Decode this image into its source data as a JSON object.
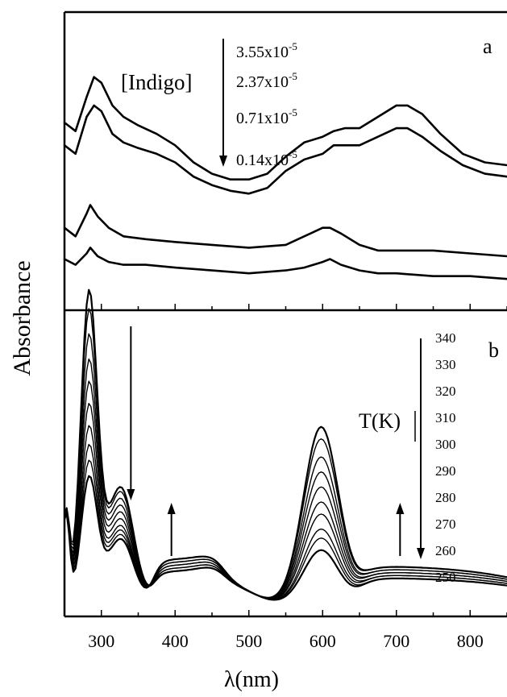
{
  "figure": {
    "ylabel": "Absorbance",
    "xlabel": "λ(nm)",
    "x_ticks": [
      "300",
      "400",
      "500",
      "600",
      "700",
      "800"
    ]
  },
  "chart_data": [
    {
      "type": "line",
      "panel": "a",
      "legend_title": "[Indigo]",
      "xlabel": "λ(nm)",
      "ylabel": "Absorbance",
      "xlim": [
        250,
        850
      ],
      "x_ticks": [
        300,
        400,
        500,
        600,
        700,
        800
      ],
      "series": [
        {
          "name": "3.55x10^-5",
          "label_base": "3.55x10",
          "label_exp": "-5",
          "points": [
            [
              250,
              0.64
            ],
            [
              265,
              0.61
            ],
            [
              280,
              0.73
            ],
            [
              290,
              0.8
            ],
            [
              300,
              0.78
            ],
            [
              315,
              0.7
            ],
            [
              330,
              0.66
            ],
            [
              350,
              0.63
            ],
            [
              375,
              0.6
            ],
            [
              400,
              0.56
            ],
            [
              425,
              0.5
            ],
            [
              450,
              0.46
            ],
            [
              475,
              0.44
            ],
            [
              500,
              0.44
            ],
            [
              525,
              0.46
            ],
            [
              550,
              0.52
            ],
            [
              575,
              0.57
            ],
            [
              600,
              0.59
            ],
            [
              615,
              0.61
            ],
            [
              630,
              0.62
            ],
            [
              650,
              0.62
            ],
            [
              675,
              0.66
            ],
            [
              700,
              0.7
            ],
            [
              715,
              0.7
            ],
            [
              735,
              0.67
            ],
            [
              760,
              0.6
            ],
            [
              790,
              0.53
            ],
            [
              820,
              0.5
            ],
            [
              850,
              0.49
            ]
          ]
        },
        {
          "name": "2.37x10^-5",
          "label_base": "2.37x10",
          "label_exp": "-5",
          "points": [
            [
              250,
              0.56
            ],
            [
              265,
              0.53
            ],
            [
              280,
              0.66
            ],
            [
              290,
              0.7
            ],
            [
              300,
              0.68
            ],
            [
              315,
              0.6
            ],
            [
              330,
              0.57
            ],
            [
              350,
              0.55
            ],
            [
              375,
              0.53
            ],
            [
              400,
              0.5
            ],
            [
              425,
              0.45
            ],
            [
              450,
              0.42
            ],
            [
              475,
              0.4
            ],
            [
              500,
              0.39
            ],
            [
              525,
              0.41
            ],
            [
              550,
              0.47
            ],
            [
              575,
              0.51
            ],
            [
              600,
              0.53
            ],
            [
              615,
              0.56
            ],
            [
              630,
              0.56
            ],
            [
              650,
              0.56
            ],
            [
              675,
              0.59
            ],
            [
              700,
              0.62
            ],
            [
              715,
              0.62
            ],
            [
              735,
              0.59
            ],
            [
              760,
              0.54
            ],
            [
              790,
              0.49
            ],
            [
              820,
              0.46
            ],
            [
              850,
              0.45
            ]
          ]
        },
        {
          "name": "0.71x10^-5",
          "label_base": "0.71x10",
          "label_exp": "-5",
          "points": [
            [
              250,
              0.27
            ],
            [
              265,
              0.24
            ],
            [
              280,
              0.32
            ],
            [
              285,
              0.35
            ],
            [
              295,
              0.31
            ],
            [
              310,
              0.27
            ],
            [
              330,
              0.24
            ],
            [
              360,
              0.23
            ],
            [
              400,
              0.22
            ],
            [
              450,
              0.21
            ],
            [
              500,
              0.2
            ],
            [
              550,
              0.21
            ],
            [
              575,
              0.24
            ],
            [
              600,
              0.27
            ],
            [
              610,
              0.27
            ],
            [
              625,
              0.25
            ],
            [
              650,
              0.21
            ],
            [
              675,
              0.19
            ],
            [
              700,
              0.19
            ],
            [
              725,
              0.19
            ],
            [
              750,
              0.19
            ],
            [
              800,
              0.18
            ],
            [
              850,
              0.17
            ]
          ]
        },
        {
          "name": "0.14x10^-5",
          "label_base": "0.14x10",
          "label_exp": "-5",
          "points": [
            [
              250,
              0.16
            ],
            [
              265,
              0.14
            ],
            [
              280,
              0.18
            ],
            [
              285,
              0.2
            ],
            [
              295,
              0.17
            ],
            [
              310,
              0.15
            ],
            [
              330,
              0.14
            ],
            [
              360,
              0.14
            ],
            [
              400,
              0.13
            ],
            [
              450,
              0.12
            ],
            [
              500,
              0.11
            ],
            [
              550,
              0.12
            ],
            [
              575,
              0.13
            ],
            [
              600,
              0.15
            ],
            [
              610,
              0.16
            ],
            [
              625,
              0.14
            ],
            [
              650,
              0.12
            ],
            [
              675,
              0.11
            ],
            [
              700,
              0.11
            ],
            [
              750,
              0.1
            ],
            [
              800,
              0.1
            ],
            [
              850,
              0.09
            ]
          ]
        }
      ]
    },
    {
      "type": "line",
      "panel": "b",
      "legend_title": "T(K)",
      "xlabel": "λ(nm)",
      "ylabel": "Absorbance",
      "xlim": [
        250,
        850
      ],
      "x_ticks": [
        300,
        400,
        500,
        600,
        700,
        800
      ],
      "temperatures": [
        "340",
        "330",
        "320",
        "310",
        "300",
        "290",
        "280",
        "270",
        "260",
        "250"
      ],
      "arrows": [
        {
          "x": 340,
          "direction": "down"
        },
        {
          "x": 395,
          "direction": "up"
        },
        {
          "x": 705,
          "direction": "up"
        }
      ],
      "series": [
        {
          "name": "340",
          "peak280": 0.98,
          "shoulder": 0.52,
          "peak600": 0.59,
          "plateau400": 0.11,
          "plateau700": 0.13
        },
        {
          "name": "330",
          "peak280": 0.92,
          "shoulder": 0.5,
          "peak600": 0.55,
          "plateau400": 0.11,
          "plateau700": 0.13
        },
        {
          "name": "320",
          "peak280": 0.84,
          "shoulder": 0.47,
          "peak600": 0.49,
          "plateau400": 0.11,
          "plateau700": 0.12
        },
        {
          "name": "310",
          "peak280": 0.76,
          "shoulder": 0.44,
          "peak600": 0.44,
          "plateau400": 0.12,
          "plateau700": 0.12
        },
        {
          "name": "300",
          "peak280": 0.69,
          "shoulder": 0.41,
          "peak600": 0.39,
          "plateau400": 0.12,
          "plateau700": 0.11
        },
        {
          "name": "290",
          "peak280": 0.62,
          "shoulder": 0.38,
          "peak600": 0.34,
          "plateau400": 0.13,
          "plateau700": 0.11
        },
        {
          "name": "280",
          "peak280": 0.55,
          "shoulder": 0.35,
          "peak600": 0.3,
          "plateau400": 0.13,
          "plateau700": 0.1
        },
        {
          "name": "270",
          "peak280": 0.49,
          "shoulder": 0.33,
          "peak600": 0.25,
          "plateau400": 0.14,
          "plateau700": 0.1
        },
        {
          "name": "260",
          "peak280": 0.44,
          "shoulder": 0.31,
          "peak600": 0.22,
          "plateau400": 0.14,
          "plateau700": 0.09
        },
        {
          "name": "250",
          "peak280": 0.39,
          "shoulder": 0.29,
          "peak600": 0.18,
          "plateau400": 0.15,
          "plateau700": 0.09
        }
      ]
    }
  ]
}
